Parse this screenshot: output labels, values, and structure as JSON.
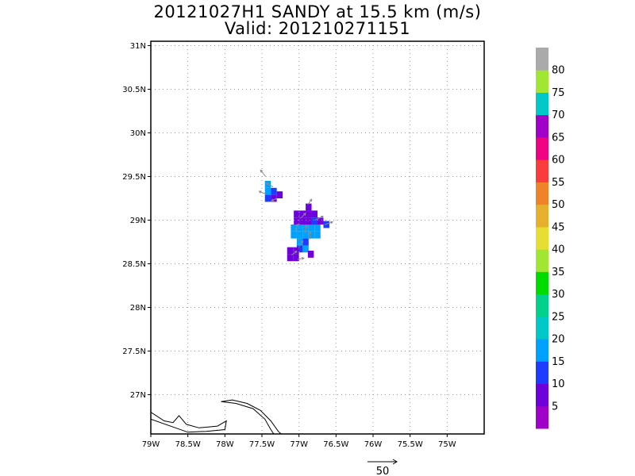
{
  "title": {
    "line1": "20121027H1 SANDY at 15.5 km (m/s)",
    "line2": "Valid: 201210271151"
  },
  "map": {
    "lon_range": [
      -79,
      -74.5
    ],
    "lat_range": [
      26.55,
      31.05
    ],
    "x_ticks": [
      {
        "value": -79,
        "label": "79W"
      },
      {
        "value": -78.5,
        "label": "78.5W"
      },
      {
        "value": -78,
        "label": "78W"
      },
      {
        "value": -77.5,
        "label": "77.5W"
      },
      {
        "value": -77,
        "label": "77W"
      },
      {
        "value": -76.5,
        "label": "76.5W"
      },
      {
        "value": -76,
        "label": "76W"
      },
      {
        "value": -75.5,
        "label": "75.5W"
      },
      {
        "value": -75,
        "label": "75W"
      }
    ],
    "y_ticks": [
      {
        "value": 27,
        "label": "27N"
      },
      {
        "value": 27.5,
        "label": "27.5N"
      },
      {
        "value": 28,
        "label": "28N"
      },
      {
        "value": 28.5,
        "label": "28.5N"
      },
      {
        "value": 29,
        "label": "29N"
      },
      {
        "value": 29.5,
        "label": "29.5N"
      },
      {
        "value": 30,
        "label": "30N"
      },
      {
        "value": 30.5,
        "label": "30.5N"
      },
      {
        "value": 31,
        "label": "31N"
      }
    ],
    "grid": "dotted",
    "coastlines": [
      [
        [
          -79.0,
          26.8
        ],
        [
          -78.82,
          26.7
        ],
        [
          -78.7,
          26.68
        ],
        [
          -78.62,
          26.76
        ],
        [
          -78.52,
          26.66
        ],
        [
          -78.35,
          26.62
        ],
        [
          -78.1,
          26.64
        ],
        [
          -77.98,
          26.7
        ],
        [
          -78.0,
          26.6
        ],
        [
          -78.25,
          26.58
        ],
        [
          -78.5,
          26.57
        ],
        [
          -79.0,
          26.72
        ]
      ],
      [
        [
          -78.05,
          26.92
        ],
        [
          -77.9,
          26.94
        ],
        [
          -77.7,
          26.9
        ],
        [
          -77.52,
          26.82
        ],
        [
          -77.38,
          26.7
        ],
        [
          -77.28,
          26.58
        ],
        [
          -77.24,
          26.55
        ]
      ],
      [
        [
          -78.05,
          26.92
        ],
        [
          -77.85,
          26.9
        ],
        [
          -77.62,
          26.84
        ],
        [
          -77.46,
          26.72
        ],
        [
          -77.38,
          26.6
        ],
        [
          -77.34,
          26.55
        ]
      ]
    ],
    "wind_cells": [
      {
        "lon": -77.42,
        "lat": 29.41,
        "speed": 18
      },
      {
        "lon": -77.42,
        "lat": 29.33,
        "speed": 18
      },
      {
        "lon": -77.34,
        "lat": 29.33,
        "speed": 13
      },
      {
        "lon": -77.42,
        "lat": 29.25,
        "speed": 13
      },
      {
        "lon": -77.34,
        "lat": 29.25,
        "speed": 8
      },
      {
        "lon": -77.26,
        "lat": 29.29,
        "speed": 8
      },
      {
        "lon": -77.03,
        "lat": 29.07,
        "speed": 8
      },
      {
        "lon": -76.95,
        "lat": 29.07,
        "speed": 8
      },
      {
        "lon": -76.87,
        "lat": 29.15,
        "speed": 8
      },
      {
        "lon": -76.87,
        "lat": 29.07,
        "speed": 8
      },
      {
        "lon": -76.79,
        "lat": 29.07,
        "speed": 8
      },
      {
        "lon": -76.71,
        "lat": 28.99,
        "speed": 8
      },
      {
        "lon": -76.63,
        "lat": 28.95,
        "speed": 13
      },
      {
        "lon": -77.03,
        "lat": 28.99,
        "speed": 8
      },
      {
        "lon": -76.95,
        "lat": 28.99,
        "speed": 8
      },
      {
        "lon": -76.87,
        "lat": 28.99,
        "speed": 8
      },
      {
        "lon": -76.79,
        "lat": 28.99,
        "speed": 13
      },
      {
        "lon": -77.07,
        "lat": 28.91,
        "speed": 18
      },
      {
        "lon": -76.99,
        "lat": 28.91,
        "speed": 18
      },
      {
        "lon": -76.91,
        "lat": 28.91,
        "speed": 18
      },
      {
        "lon": -76.83,
        "lat": 28.91,
        "speed": 18
      },
      {
        "lon": -76.75,
        "lat": 28.91,
        "speed": 18
      },
      {
        "lon": -77.07,
        "lat": 28.83,
        "speed": 18
      },
      {
        "lon": -76.99,
        "lat": 28.83,
        "speed": 18
      },
      {
        "lon": -76.91,
        "lat": 28.83,
        "speed": 18
      },
      {
        "lon": -76.83,
        "lat": 28.83,
        "speed": 18
      },
      {
        "lon": -76.75,
        "lat": 28.83,
        "speed": 18
      },
      {
        "lon": -76.99,
        "lat": 28.75,
        "speed": 18
      },
      {
        "lon": -76.91,
        "lat": 28.75,
        "speed": 13
      },
      {
        "lon": -76.99,
        "lat": 28.67,
        "speed": 13
      },
      {
        "lon": -76.91,
        "lat": 28.67,
        "speed": 18
      },
      {
        "lon": -77.12,
        "lat": 28.65,
        "speed": 8
      },
      {
        "lon": -77.04,
        "lat": 28.65,
        "speed": 8
      },
      {
        "lon": -77.12,
        "lat": 28.57,
        "speed": 8
      },
      {
        "lon": -77.04,
        "lat": 28.57,
        "speed": 8
      },
      {
        "lon": -76.84,
        "lat": 28.61,
        "speed": 8
      }
    ],
    "wind_vectors": [
      {
        "lon": -77.45,
        "lat": 29.5,
        "u": -4,
        "v": 5
      },
      {
        "lon": -77.35,
        "lat": 29.38,
        "u": -5,
        "v": 3
      },
      {
        "lon": -77.45,
        "lat": 29.3,
        "u": -5,
        "v": 2
      },
      {
        "lon": -77.3,
        "lat": 29.25,
        "u": -4,
        "v": -2
      },
      {
        "lon": -76.88,
        "lat": 29.18,
        "u": 3,
        "v": 4
      },
      {
        "lon": -76.98,
        "lat": 29.02,
        "u": 4,
        "v": 4
      },
      {
        "lon": -76.78,
        "lat": 29.0,
        "u": 6,
        "v": 3
      },
      {
        "lon": -76.65,
        "lat": 28.95,
        "u": 6,
        "v": 2
      },
      {
        "lon": -77.05,
        "lat": 28.88,
        "u": 2,
        "v": 5
      },
      {
        "lon": -76.92,
        "lat": 28.85,
        "u": 1,
        "v": 6
      },
      {
        "lon": -76.85,
        "lat": 28.78,
        "u": 0,
        "v": 6
      },
      {
        "lon": -77.0,
        "lat": 28.7,
        "u": 3,
        "v": 4
      },
      {
        "lon": -77.1,
        "lat": 28.6,
        "u": 4,
        "v": 3
      },
      {
        "lon": -77.02,
        "lat": 28.55,
        "u": 5,
        "v": 1
      }
    ],
    "reference_vector": {
      "label": "50",
      "value": 50
    }
  },
  "colorbar": {
    "levels": [
      0,
      5,
      10,
      15,
      20,
      25,
      30,
      35,
      40,
      45,
      50,
      55,
      60,
      65,
      70,
      75,
      80,
      85
    ],
    "colors": [
      "#a000c8",
      "#6e00dc",
      "#1e3cff",
      "#00a0ff",
      "#00c8c8",
      "#00d28c",
      "#00dc00",
      "#a0e632",
      "#e6dc32",
      "#e6af2d",
      "#f08228",
      "#fa3c3c",
      "#f00082",
      "#a000c8",
      "#00c8c8",
      "#a0e632",
      "#aaaaaa"
    ],
    "labels": [
      {
        "value": 5,
        "label": "5"
      },
      {
        "value": 10,
        "label": "10"
      },
      {
        "value": 15,
        "label": "15"
      },
      {
        "value": 20,
        "label": "20"
      },
      {
        "value": 25,
        "label": "25"
      },
      {
        "value": 30,
        "label": "30"
      },
      {
        "value": 35,
        "label": "35"
      },
      {
        "value": 40,
        "label": "40"
      },
      {
        "value": 45,
        "label": "45"
      },
      {
        "value": 50,
        "label": "50"
      },
      {
        "value": 55,
        "label": "55"
      },
      {
        "value": 60,
        "label": "60"
      },
      {
        "value": 65,
        "label": "65"
      },
      {
        "value": 70,
        "label": "70"
      },
      {
        "value": 75,
        "label": "75"
      },
      {
        "value": 80,
        "label": "80"
      }
    ]
  }
}
